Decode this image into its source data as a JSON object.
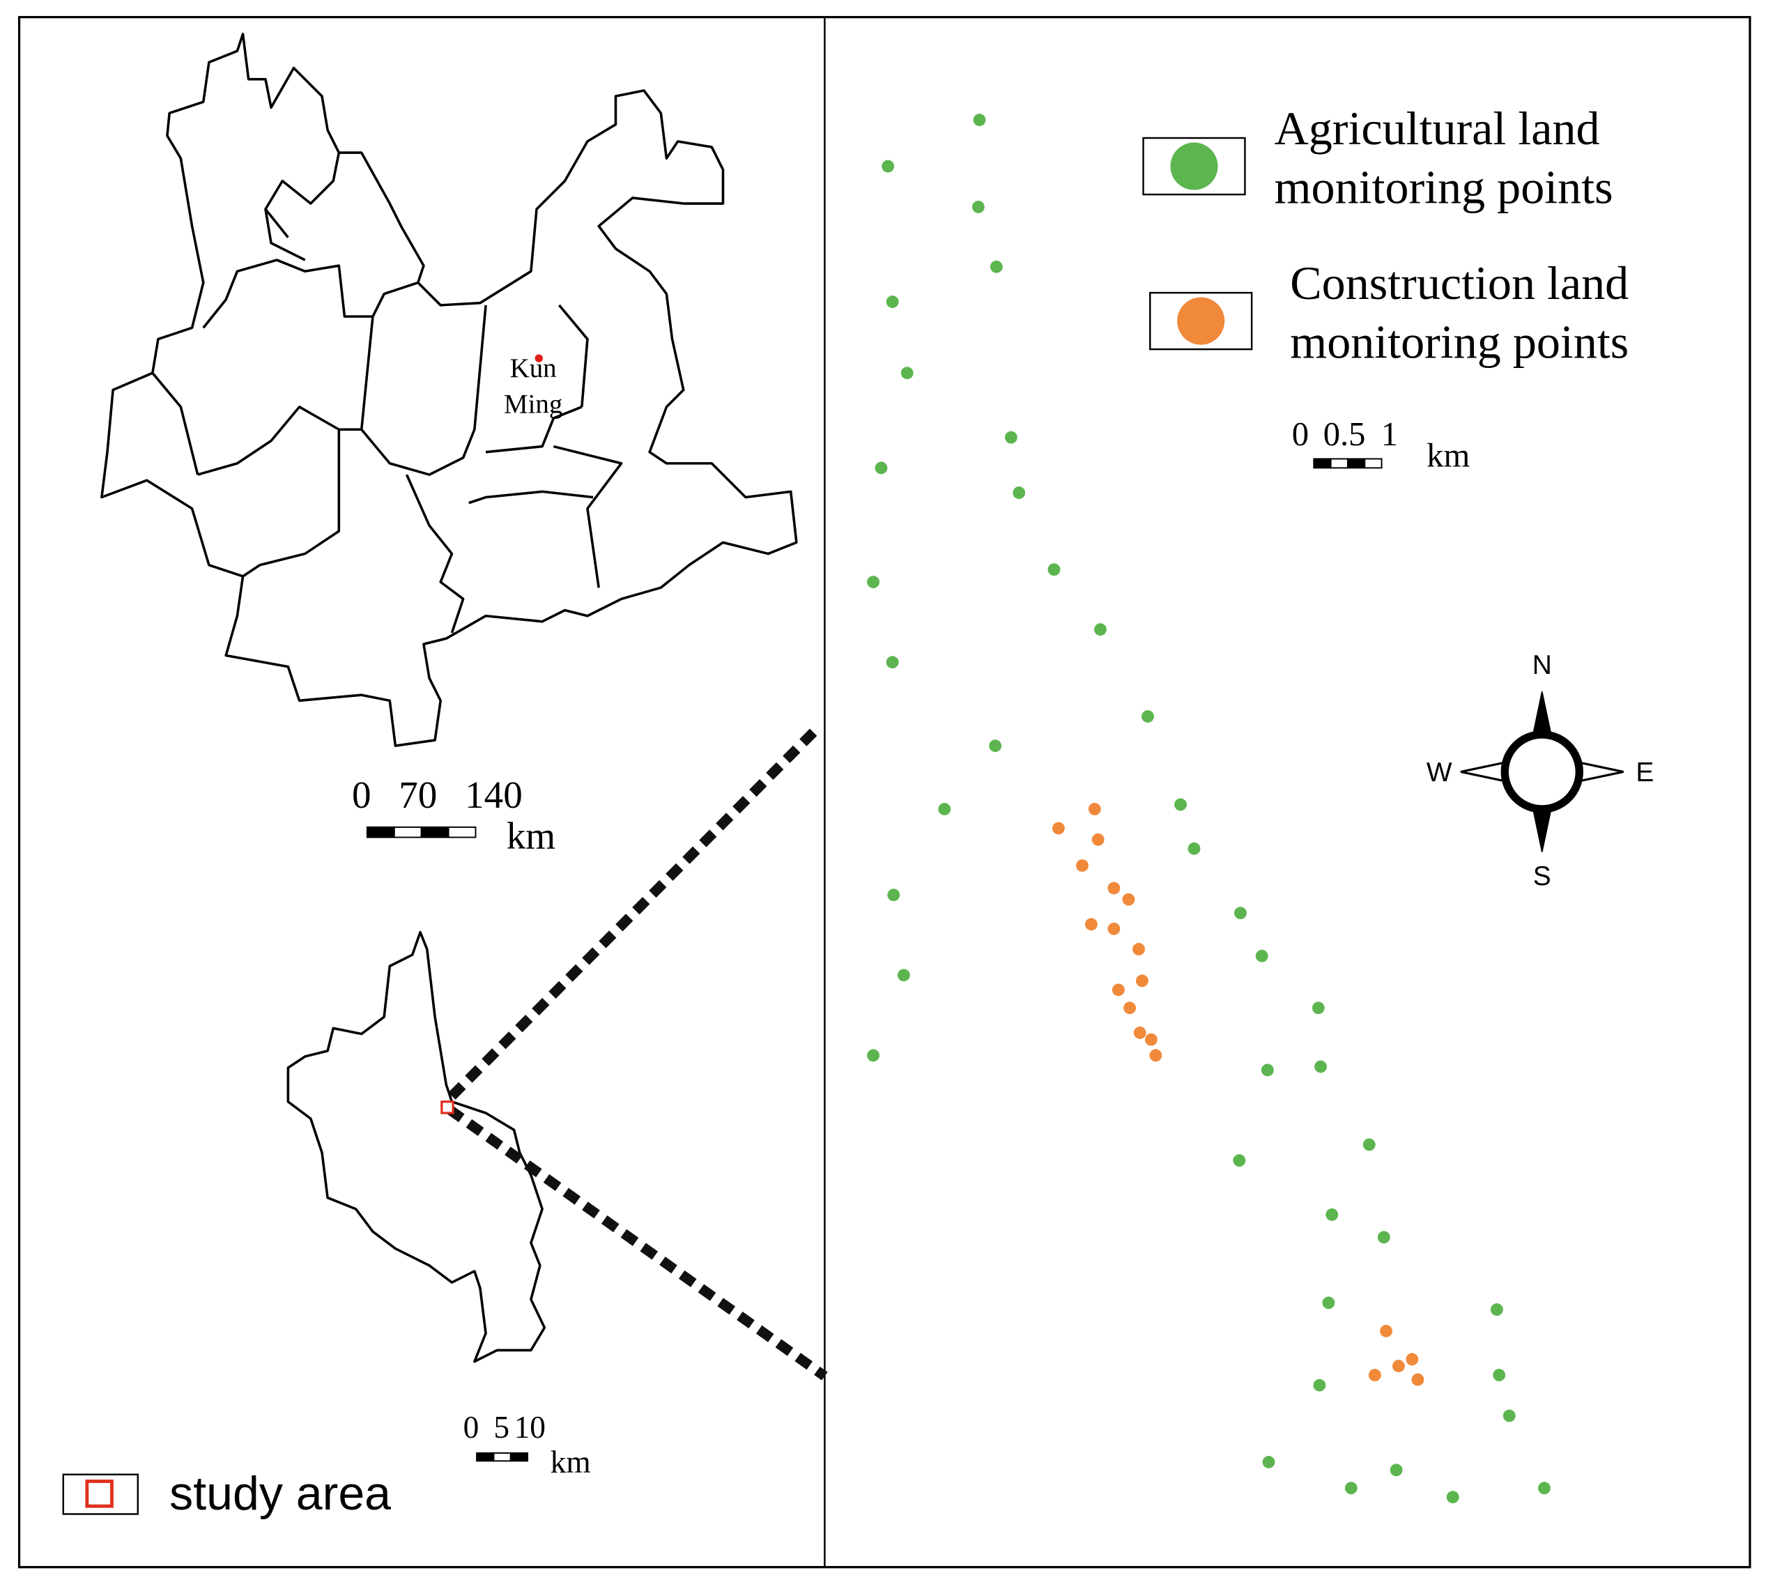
{
  "legend": {
    "items": [
      {
        "lines": [
          "Agricultural land",
          "monitoring points"
        ],
        "color": "#5cb54f"
      },
      {
        "lines": [
          "Construction land",
          "monitoring points"
        ],
        "color": "#f0893a"
      }
    ]
  },
  "province_map": {
    "city_label": [
      "Kun",
      "Ming"
    ],
    "scale": {
      "labels": [
        "0",
        "70",
        "140"
      ],
      "unit": "km"
    }
  },
  "county_map": {
    "scale": {
      "labels": [
        "0",
        "5",
        "10"
      ],
      "unit": "km"
    },
    "legend_label": "study area"
  },
  "study_map": {
    "scale": {
      "labels": [
        "0",
        "0.5",
        "1"
      ],
      "unit": "km"
    },
    "compass": {
      "north": "N",
      "south": "S",
      "east": "E",
      "west": "W"
    }
  }
}
